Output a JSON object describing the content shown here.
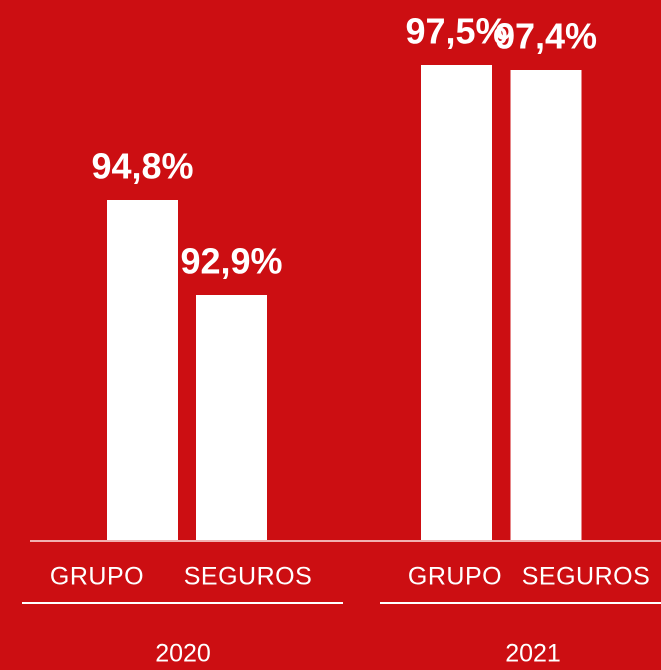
{
  "chart_data": {
    "type": "bar",
    "categories": [
      "2020",
      "2021"
    ],
    "series": [
      {
        "name": "GRUPO",
        "color": "#ffffff",
        "values": [
          94.8,
          97.5
        ],
        "value_labels": [
          "94,8%",
          "97,5%"
        ]
      },
      {
        "name": "SEGUROS",
        "color": "#ffffff",
        "values": [
          92.9,
          97.4
        ],
        "value_labels": [
          "92,9%",
          "97,4%"
        ]
      }
    ],
    "ylim": [
      88,
      98
    ]
  }
}
